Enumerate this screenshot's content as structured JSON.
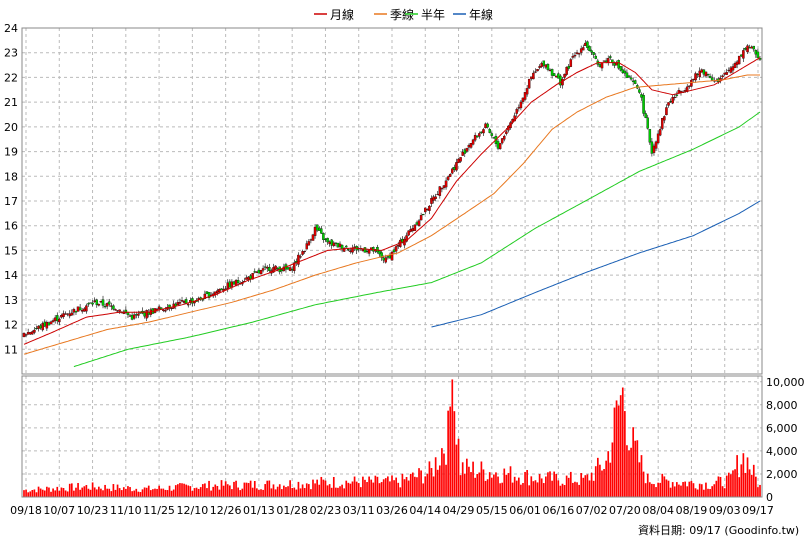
{
  "chart_data": {
    "type": "candlestick+line+bar",
    "legend": [
      {
        "name": "月線",
        "color": "#cc0000"
      },
      {
        "name": "季線",
        "color": "#e87820"
      },
      {
        "name": "半年",
        "color": "#22cc22"
      },
      {
        "name": "年線",
        "color": "#1a5fb4"
      }
    ],
    "price_axis": {
      "ylim": [
        10,
        24
      ],
      "ticks": [
        11,
        12,
        13,
        14,
        15,
        16,
        17,
        18,
        19,
        20,
        21,
        22,
        23,
        24
      ]
    },
    "volume_axis": {
      "ylim": [
        0,
        10500
      ],
      "ticks": [
        {
          "v": 0,
          "label": "0"
        },
        {
          "v": 2000,
          "label": "2,000"
        },
        {
          "v": 4000,
          "label": "4,000"
        },
        {
          "v": 6000,
          "label": "6,000"
        },
        {
          "v": 8000,
          "label": "8,000"
        },
        {
          "v": 10000,
          "label": "10,000"
        }
      ]
    },
    "x_ticks": [
      "09/18",
      "10/07",
      "10/23",
      "11/10",
      "11/25",
      "12/10",
      "12/26",
      "01/13",
      "01/28",
      "02/23",
      "03/11",
      "03/26",
      "04/14",
      "04/29",
      "05/15",
      "06/01",
      "06/16",
      "07/02",
      "07/20",
      "08/04",
      "08/19",
      "09/03",
      "09/17"
    ],
    "close_points": [
      [
        0,
        11.6
      ],
      [
        10,
        12.0
      ],
      [
        22,
        12.5
      ],
      [
        34,
        12.9
      ],
      [
        44,
        12.7
      ],
      [
        52,
        12.3
      ],
      [
        60,
        12.5
      ],
      [
        72,
        12.8
      ],
      [
        84,
        13.0
      ],
      [
        96,
        13.5
      ],
      [
        108,
        13.9
      ],
      [
        118,
        14.3
      ],
      [
        128,
        14.2
      ],
      [
        136,
        15.2
      ],
      [
        140,
        15.9
      ],
      [
        146,
        15.3
      ],
      [
        156,
        15.1
      ],
      [
        168,
        15.0
      ],
      [
        174,
        14.6
      ],
      [
        182,
        15.4
      ],
      [
        192,
        16.5
      ],
      [
        204,
        18.0
      ],
      [
        214,
        19.3
      ],
      [
        222,
        20.0
      ],
      [
        228,
        19.2
      ],
      [
        236,
        20.5
      ],
      [
        244,
        22.0
      ],
      [
        250,
        22.6
      ],
      [
        258,
        21.8
      ],
      [
        264,
        22.8
      ],
      [
        270,
        23.4
      ],
      [
        276,
        22.5
      ],
      [
        282,
        22.8
      ],
      [
        290,
        22.0
      ],
      [
        296,
        21.5
      ],
      [
        302,
        19.0
      ],
      [
        310,
        21.0
      ],
      [
        318,
        21.6
      ],
      [
        326,
        22.3
      ],
      [
        334,
        21.8
      ],
      [
        342,
        22.6
      ],
      [
        348,
        23.3
      ],
      [
        354,
        22.8
      ]
    ],
    "ma_month": [
      [
        0,
        11.2
      ],
      [
        14,
        11.7
      ],
      [
        30,
        12.3
      ],
      [
        46,
        12.5
      ],
      [
        60,
        12.5
      ],
      [
        76,
        12.8
      ],
      [
        92,
        13.2
      ],
      [
        108,
        13.8
      ],
      [
        122,
        14.2
      ],
      [
        134,
        14.6
      ],
      [
        146,
        15.0
      ],
      [
        158,
        15.1
      ],
      [
        172,
        15.0
      ],
      [
        184,
        15.4
      ],
      [
        196,
        16.3
      ],
      [
        208,
        17.8
      ],
      [
        220,
        18.9
      ],
      [
        232,
        19.9
      ],
      [
        244,
        21.0
      ],
      [
        256,
        21.7
      ],
      [
        266,
        22.2
      ],
      [
        276,
        22.6
      ],
      [
        286,
        22.6
      ],
      [
        294,
        22.2
      ],
      [
        302,
        21.5
      ],
      [
        312,
        21.3
      ],
      [
        322,
        21.5
      ],
      [
        332,
        21.7
      ],
      [
        342,
        22.2
      ],
      [
        354,
        22.8
      ]
    ],
    "ma_quarter": [
      [
        0,
        10.8
      ],
      [
        20,
        11.3
      ],
      [
        40,
        11.8
      ],
      [
        60,
        12.1
      ],
      [
        80,
        12.5
      ],
      [
        100,
        12.9
      ],
      [
        120,
        13.4
      ],
      [
        140,
        14.0
      ],
      [
        160,
        14.5
      ],
      [
        180,
        14.9
      ],
      [
        196,
        15.6
      ],
      [
        212,
        16.5
      ],
      [
        226,
        17.3
      ],
      [
        240,
        18.5
      ],
      [
        254,
        19.9
      ],
      [
        266,
        20.6
      ],
      [
        280,
        21.2
      ],
      [
        294,
        21.6
      ],
      [
        308,
        21.7
      ],
      [
        322,
        21.8
      ],
      [
        336,
        21.9
      ],
      [
        348,
        22.1
      ],
      [
        354,
        22.1
      ]
    ],
    "ma_half": [
      [
        24,
        10.3
      ],
      [
        50,
        11.0
      ],
      [
        80,
        11.5
      ],
      [
        110,
        12.1
      ],
      [
        140,
        12.8
      ],
      [
        170,
        13.3
      ],
      [
        196,
        13.7
      ],
      [
        220,
        14.5
      ],
      [
        246,
        15.9
      ],
      [
        270,
        17.0
      ],
      [
        296,
        18.2
      ],
      [
        322,
        19.1
      ],
      [
        344,
        20.0
      ],
      [
        354,
        20.6
      ]
    ],
    "ma_year": [
      [
        196,
        11.9
      ],
      [
        220,
        12.4
      ],
      [
        246,
        13.3
      ],
      [
        270,
        14.1
      ],
      [
        296,
        14.9
      ],
      [
        322,
        15.6
      ],
      [
        344,
        16.5
      ],
      [
        354,
        17.0
      ]
    ],
    "volume_samples": [
      [
        0,
        600
      ],
      [
        30,
        900
      ],
      [
        60,
        700
      ],
      [
        90,
        1000
      ],
      [
        120,
        1100
      ],
      [
        150,
        1300
      ],
      [
        180,
        1300
      ],
      [
        196,
        2200
      ],
      [
        204,
        5300
      ],
      [
        206,
        10200
      ],
      [
        210,
        2500
      ],
      [
        250,
        1600
      ],
      [
        270,
        1500
      ],
      [
        280,
        3000
      ],
      [
        284,
        6000
      ],
      [
        288,
        9500
      ],
      [
        292,
        4800
      ],
      [
        300,
        1500
      ],
      [
        330,
        1100
      ],
      [
        340,
        1500
      ],
      [
        346,
        3800
      ],
      [
        354,
        900
      ]
    ],
    "footer": "資料日期: 09/17  (Goodinfo.tw)"
  }
}
